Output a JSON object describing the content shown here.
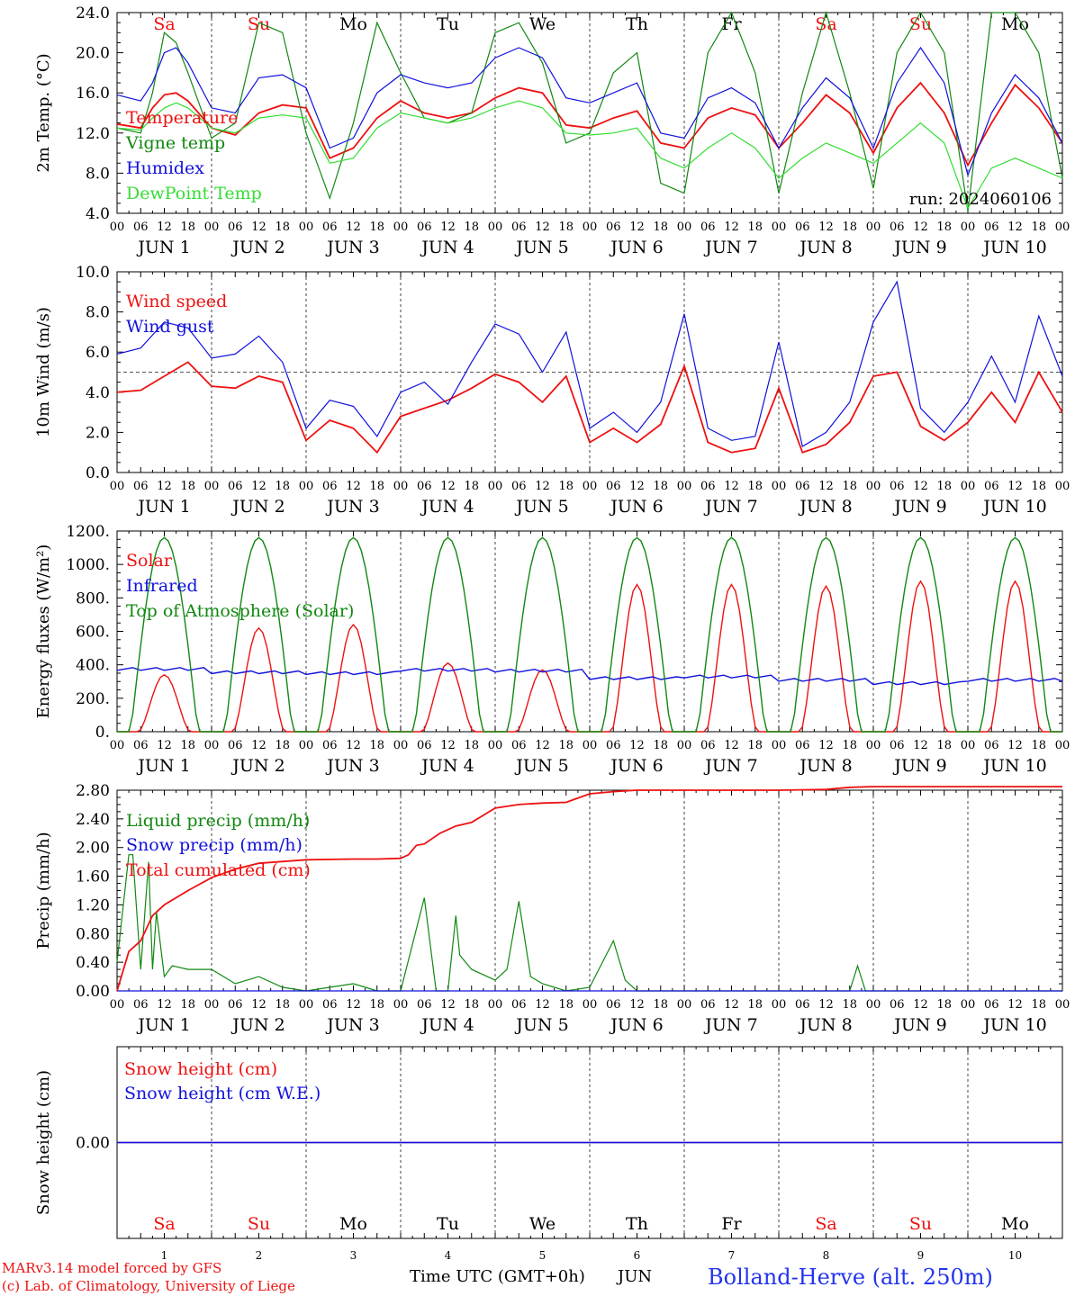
{
  "colors": {
    "red": "#ee1111",
    "green": "#118811",
    "blue": "#1111dd",
    "lightgreen": "#33dd33",
    "purple": "#882288",
    "footer_blue": "#2233ee"
  },
  "days": {
    "weekdays": [
      "Sa",
      "Su",
      "Mo",
      "Tu",
      "We",
      "Th",
      "Fr",
      "Sa",
      "Su",
      "Mo"
    ],
    "weekend_flags": [
      true,
      true,
      false,
      false,
      false,
      false,
      false,
      true,
      true,
      false
    ],
    "day_labels": [
      "JUN  1",
      "JUN  2",
      "JUN  3",
      "JUN  4",
      "JUN  5",
      "JUN  6",
      "JUN  7",
      "JUN  8",
      "JUN  9",
      "JUN 10"
    ],
    "hour_ticks": [
      "00",
      "06",
      "12",
      "18"
    ],
    "final_tick": "00",
    "day_numbers": [
      "1",
      "2",
      "3",
      "4",
      "5",
      "6",
      "7",
      "8",
      "9",
      "10"
    ]
  },
  "footer": {
    "xlabel": "Time UTC (GMT+0h)",
    "month": "JUN",
    "credit1": "MARv3.14 model forced by GFS",
    "credit2": "(c) Lab. of Climatology, University of Liege",
    "station": "Bolland-Herve (alt. 250m)"
  },
  "chart_data": [
    {
      "type": "line",
      "ylabel": "2m Temp. (°C)",
      "ylim": [
        4,
        24
      ],
      "ytick_values": [
        4,
        8,
        12,
        16,
        20,
        24
      ],
      "ytick_labels": [
        "4.0",
        "8.0",
        "12.0",
        "16.0",
        "20.0",
        "24.0"
      ],
      "annotation": "run: 2024060106",
      "x_hours": [
        0,
        6,
        9,
        12,
        15,
        18,
        24,
        30,
        36,
        42,
        48,
        54,
        60,
        66,
        72,
        78,
        84,
        90,
        96,
        102,
        108,
        114,
        120,
        126,
        132,
        138,
        144,
        150,
        156,
        162,
        168,
        174,
        180,
        186,
        192,
        198,
        204,
        210,
        216,
        222,
        228,
        234,
        240
      ],
      "series": [
        {
          "name": "Temperature",
          "color_key": "red",
          "values": [
            12.9,
            12.5,
            14.5,
            15.8,
            16.0,
            15.2,
            12.5,
            11.8,
            14.0,
            14.8,
            14.5,
            9.5,
            10.5,
            13.5,
            15.2,
            14.0,
            13.5,
            14.0,
            15.5,
            16.5,
            16.0,
            12.8,
            12.5,
            13.5,
            14.2,
            11.0,
            10.5,
            13.5,
            14.5,
            13.8,
            10.5,
            13.0,
            15.8,
            14.0,
            10.0,
            14.5,
            17.0,
            14.0,
            8.8,
            13.0,
            16.8,
            14.5,
            11.0
          ]
        },
        {
          "name": "Vigne temp",
          "color_key": "green",
          "values": [
            12.5,
            12.0,
            16.0,
            22.0,
            21.0,
            18.0,
            11.5,
            13.0,
            23.0,
            22.0,
            12.0,
            5.5,
            13.0,
            23.0,
            18.0,
            13.5,
            13.0,
            14.0,
            22.0,
            23.0,
            19.0,
            11.0,
            12.0,
            18.0,
            20.0,
            7.0,
            6.0,
            20.0,
            24.0,
            18.0,
            6.0,
            16.0,
            24.0,
            16.0,
            6.5,
            20.0,
            24.0,
            20.0,
            4.2,
            24.0,
            24.0,
            20.0,
            7.5
          ]
        },
        {
          "name": "Humidex",
          "color_key": "blue",
          "values": [
            15.8,
            15.2,
            17.0,
            20.0,
            20.5,
            19.0,
            14.5,
            14.0,
            17.5,
            17.8,
            16.5,
            10.5,
            11.5,
            16.0,
            17.8,
            17.0,
            16.5,
            17.0,
            19.5,
            20.5,
            19.5,
            15.5,
            15.0,
            16.0,
            17.0,
            12.0,
            11.5,
            15.5,
            16.5,
            15.0,
            10.5,
            14.5,
            17.5,
            15.5,
            10.5,
            17.0,
            20.5,
            17.0,
            7.8,
            14.0,
            17.8,
            15.5,
            11.0
          ]
        },
        {
          "name": "DewPoint Temp",
          "color_key": "lightgreen",
          "values": [
            12.5,
            12.3,
            13.5,
            14.5,
            15.0,
            14.5,
            12.5,
            12.0,
            13.5,
            13.8,
            13.5,
            9.0,
            9.5,
            12.5,
            14.0,
            13.5,
            13.0,
            13.5,
            14.5,
            15.2,
            14.5,
            12.0,
            11.8,
            12.0,
            12.5,
            9.5,
            8.5,
            10.5,
            12.0,
            10.5,
            7.5,
            9.5,
            11.0,
            10.0,
            9.0,
            11.0,
            13.0,
            11.0,
            4.5,
            8.5,
            9.5,
            8.5,
            7.5
          ]
        }
      ]
    },
    {
      "type": "line",
      "ylabel": "10m Wind (m/s)",
      "ylim": [
        0,
        10
      ],
      "ytick_values": [
        0,
        2,
        4,
        6,
        8,
        10
      ],
      "ytick_labels": [
        "0.0",
        "2.0",
        "4.0",
        "6.0",
        "8.0",
        "10.0"
      ],
      "reference_line": 5,
      "x_hours": [
        0,
        6,
        12,
        18,
        24,
        30,
        36,
        42,
        48,
        54,
        60,
        66,
        72,
        78,
        84,
        90,
        96,
        102,
        108,
        114,
        120,
        126,
        132,
        138,
        144,
        150,
        156,
        162,
        168,
        174,
        180,
        186,
        192,
        198,
        204,
        210,
        216,
        222,
        228,
        234,
        240
      ],
      "series": [
        {
          "name": "Wind speed",
          "color_key": "red",
          "values": [
            4.0,
            4.1,
            4.8,
            5.5,
            4.3,
            4.2,
            4.8,
            4.5,
            1.6,
            2.6,
            2.2,
            1.0,
            2.8,
            3.2,
            3.6,
            4.2,
            4.9,
            4.5,
            3.5,
            4.8,
            1.5,
            2.2,
            1.5,
            2.4,
            5.3,
            1.5,
            1.0,
            1.2,
            4.2,
            1.0,
            1.4,
            2.5,
            4.8,
            5.0,
            2.3,
            1.6,
            2.5,
            4.0,
            2.5,
            5.0,
            3.0
          ]
        },
        {
          "name": "Wind gust",
          "color_key": "blue",
          "values": [
            5.9,
            6.2,
            7.5,
            7.2,
            5.7,
            5.9,
            6.8,
            5.5,
            2.2,
            3.6,
            3.3,
            1.8,
            4.0,
            4.5,
            3.4,
            5.5,
            7.4,
            6.9,
            5.0,
            7.0,
            2.2,
            3.0,
            2.0,
            3.5,
            7.9,
            2.2,
            1.6,
            1.8,
            6.5,
            1.3,
            2.0,
            3.5,
            7.5,
            9.5,
            3.2,
            2.0,
            3.5,
            5.8,
            3.5,
            7.8,
            4.8
          ]
        }
      ]
    },
    {
      "type": "line",
      "ylabel": "Energy fluxes (W/m²)",
      "ylim": [
        0,
        1200
      ],
      "ytick_values": [
        0,
        200,
        400,
        600,
        800,
        1000,
        1200
      ],
      "ytick_labels": [
        "0.",
        "200.",
        "400.",
        "600.",
        "800.",
        "1000.",
        "1200."
      ],
      "series": [
        {
          "name": "Solar",
          "color_key": "red",
          "daily_peaks": [
            340,
            620,
            640,
            410,
            370,
            880,
            880,
            870,
            900,
            900
          ]
        },
        {
          "name": "Infrared",
          "color_key": "blue",
          "daily_levels": [
            375,
            355,
            350,
            370,
            365,
            320,
            330,
            310,
            290,
            310
          ]
        },
        {
          "name": "Top of Atmosphere (Solar)",
          "color_key": "green",
          "daily_peak": 1160
        }
      ]
    },
    {
      "type": "line",
      "ylabel": "Precip (mm/h)",
      "ylim": [
        0,
        2.8
      ],
      "ytick_values": [
        0,
        0.4,
        0.8,
        1.2,
        1.6,
        2.0,
        2.4,
        2.8
      ],
      "ytick_labels": [
        "0.00",
        "0.40",
        "0.80",
        "1.20",
        "1.60",
        "2.00",
        "2.40",
        "2.80"
      ],
      "series": [
        {
          "name": "Liquid precip (mm/h)",
          "color_key": "green",
          "x_hours": [
            0,
            3,
            4,
            6,
            8,
            9,
            10,
            12,
            14,
            18,
            24,
            30,
            36,
            42,
            48,
            60,
            66,
            72,
            78,
            81,
            84,
            86,
            87,
            90,
            96,
            99,
            102,
            105,
            108,
            114,
            120,
            126,
            129,
            132,
            138,
            144,
            180,
            186,
            188,
            190,
            192,
            240
          ],
          "values": [
            0.4,
            1.9,
            1.9,
            0.3,
            1.8,
            0.3,
            1.1,
            0.2,
            0.35,
            0.3,
            0.3,
            0.1,
            0.2,
            0.05,
            0.0,
            0.1,
            0.0,
            0.0,
            1.3,
            0.0,
            0.0,
            1.05,
            0.5,
            0.3,
            0.15,
            0.3,
            1.25,
            0.2,
            0.1,
            0.0,
            0.05,
            0.7,
            0.15,
            0.0,
            0.0,
            0.0,
            0.0,
            0.0,
            0.35,
            0.0,
            0.0,
            0.0
          ]
        },
        {
          "name": "Snow precip (mm/h)",
          "color_key": "blue",
          "x_hours": [
            0,
            240
          ],
          "values": [
            0,
            0
          ]
        },
        {
          "name": "Total cumulated (cm)",
          "color_key": "red",
          "x_hours": [
            0,
            3,
            6,
            9,
            12,
            18,
            24,
            30,
            36,
            48,
            60,
            66,
            72,
            74,
            76,
            78,
            82,
            84,
            86,
            90,
            96,
            102,
            108,
            114,
            120,
            126,
            132,
            168,
            180,
            186,
            192,
            240
          ],
          "values": [
            0.0,
            0.55,
            0.7,
            1.05,
            1.2,
            1.4,
            1.58,
            1.7,
            1.78,
            1.83,
            1.84,
            1.84,
            1.85,
            1.9,
            2.03,
            2.05,
            2.2,
            2.25,
            2.3,
            2.35,
            2.55,
            2.6,
            2.62,
            2.63,
            2.75,
            2.78,
            2.8,
            2.8,
            2.81,
            2.84,
            2.85,
            2.85
          ]
        }
      ]
    },
    {
      "type": "line",
      "ylabel": "Snow height (cm)",
      "ytick_values": [
        0
      ],
      "ytick_labels": [
        "0.00"
      ],
      "series": [
        {
          "name": "Snow height (cm)",
          "color_key": "red",
          "values": [
            0,
            0
          ]
        },
        {
          "name": "Snow height (cm W.E.)",
          "color_key": "blue",
          "values": [
            0,
            0
          ]
        }
      ]
    }
  ]
}
